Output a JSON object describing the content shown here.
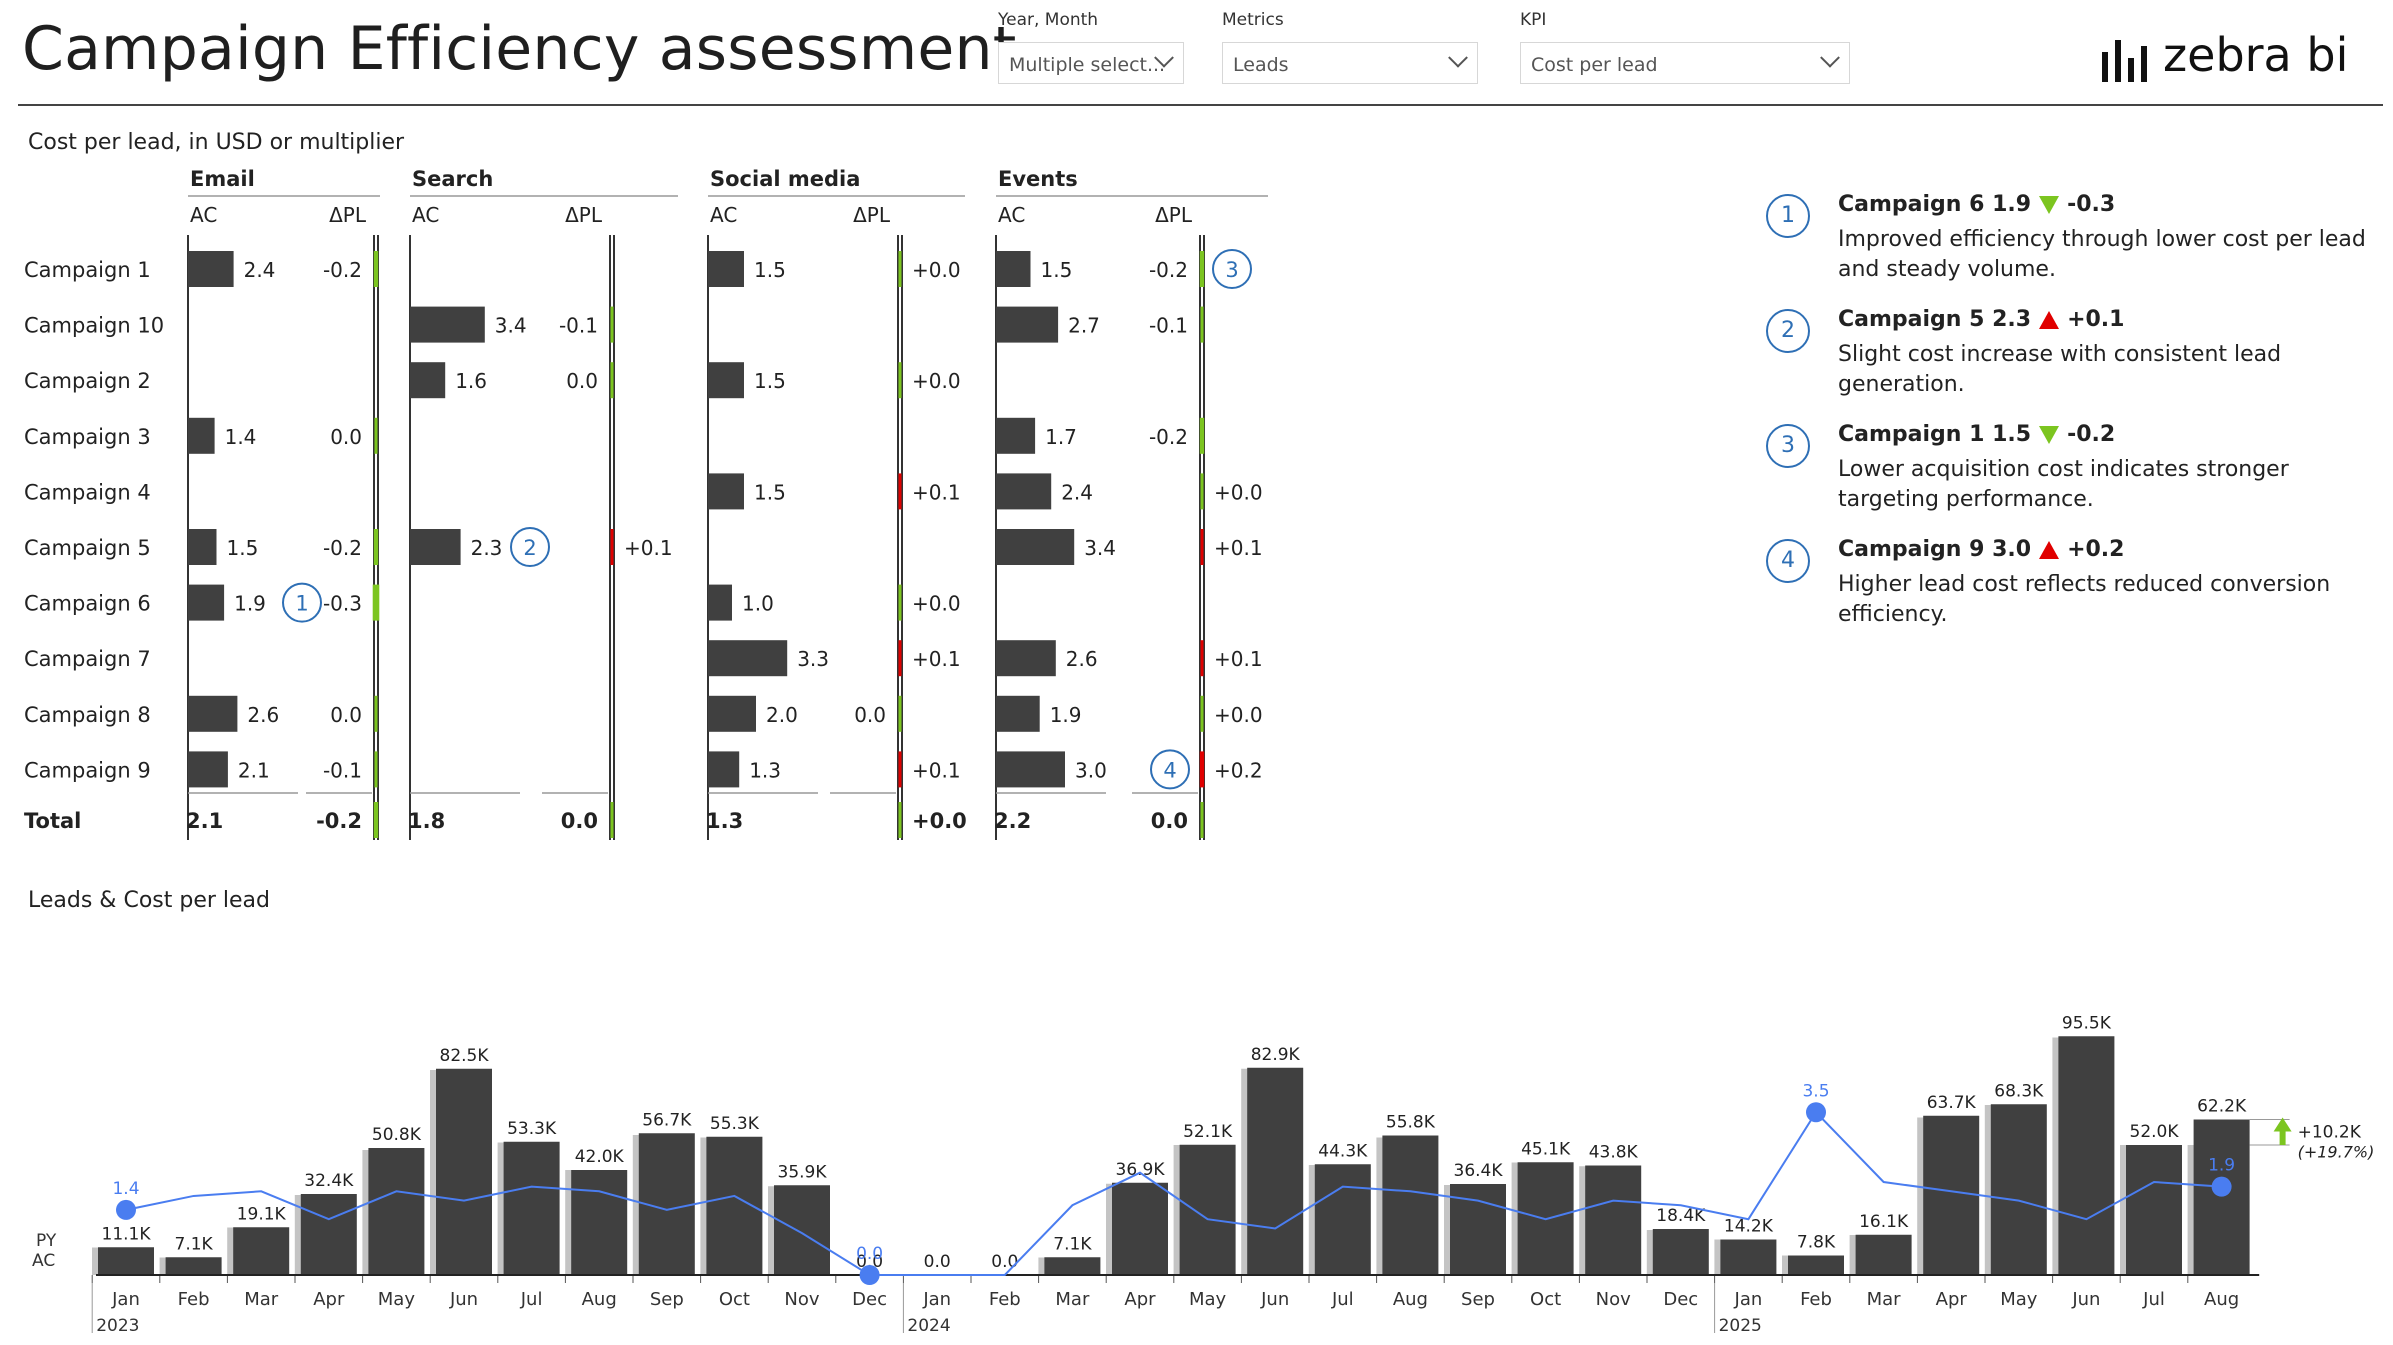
{
  "header": {
    "title": "Campaign Efficiency assessment",
    "filters": [
      {
        "label": "Year, Month",
        "value": "Multiple select..."
      },
      {
        "label": "Metrics",
        "value": "Leads"
      },
      {
        "label": "KPI",
        "value": "Cost per lead"
      }
    ],
    "logo_text": "zebra bi"
  },
  "table": {
    "subtitle": "Cost per lead, in USD or multiplier",
    "total_label": "Total",
    "ac_label": "AC",
    "dpl_label": "ΔPL",
    "rows": [
      "Campaign 1",
      "Campaign 10",
      "Campaign 2",
      "Campaign 3",
      "Campaign 4",
      "Campaign 5",
      "Campaign 6",
      "Campaign 7",
      "Campaign 8",
      "Campaign 9"
    ],
    "groups": [
      {
        "name": "Email",
        "ac": [
          2.4,
          null,
          null,
          1.4,
          null,
          1.5,
          1.9,
          null,
          2.6,
          2.1
        ],
        "ac_labels": [
          "2.4",
          "",
          "",
          "1.4",
          "",
          "1.5",
          "1.9",
          "",
          "2.6",
          "2.1"
        ],
        "dpl": [
          -0.2,
          null,
          null,
          0.0,
          null,
          -0.2,
          -0.3,
          null,
          0.0,
          -0.1
        ],
        "dpl_labels": [
          "-0.2",
          "",
          "",
          "0.0",
          "",
          "-0.2",
          "-0.3",
          "",
          "0.0",
          "-0.1"
        ],
        "total_ac": "2.1",
        "total_dpl": "-0.2",
        "total_dpl_value": -0.2
      },
      {
        "name": "Search",
        "ac": [
          null,
          3.4,
          1.6,
          null,
          null,
          2.3,
          null,
          null,
          null,
          null
        ],
        "ac_labels": [
          "",
          "3.4",
          "1.6",
          "",
          "",
          "2.3",
          "",
          "",
          "",
          ""
        ],
        "dpl": [
          null,
          -0.1,
          0.0,
          null,
          null,
          0.1,
          null,
          null,
          null,
          null
        ],
        "dpl_labels": [
          "",
          "-0.1",
          "0.0",
          "",
          "",
          "+0.1",
          "",
          "",
          "",
          ""
        ],
        "total_ac": "1.8",
        "total_dpl": "0.0",
        "total_dpl_value": 0.0
      },
      {
        "name": "Social media",
        "ac": [
          1.5,
          null,
          1.5,
          null,
          1.5,
          null,
          1.0,
          3.3,
          2.0,
          1.3
        ],
        "ac_labels": [
          "1.5",
          "",
          "1.5",
          "",
          "1.5",
          "",
          "1.0",
          "3.3",
          "2.0",
          "1.3"
        ],
        "dpl": [
          0.0,
          null,
          0.0,
          null,
          0.1,
          null,
          0.0,
          0.1,
          0.0,
          0.1
        ],
        "dpl_labels": [
          "+0.0",
          "",
          "+0.0",
          "",
          "+0.1",
          "",
          "+0.0",
          "+0.1",
          "0.0",
          "+0.1"
        ],
        "total_ac": "1.3",
        "total_dpl": "+0.0",
        "total_dpl_value": 0.0
      },
      {
        "name": "Events",
        "ac": [
          1.5,
          2.7,
          null,
          1.7,
          2.4,
          3.4,
          null,
          2.6,
          1.9,
          3.0
        ],
        "ac_labels": [
          "1.5",
          "2.7",
          "",
          "1.7",
          "2.4",
          "3.4",
          "",
          "2.6",
          "1.9",
          "3.0"
        ],
        "dpl": [
          -0.2,
          -0.1,
          null,
          -0.2,
          0.0,
          0.1,
          null,
          0.1,
          0.0,
          0.2
        ],
        "dpl_labels": [
          "-0.2",
          "-0.1",
          "",
          "-0.2",
          "+0.0",
          "+0.1",
          "",
          "+0.1",
          "+0.0",
          "+0.2"
        ],
        "total_ac": "2.2",
        "total_dpl": "0.0",
        "total_dpl_value": 0.0
      }
    ],
    "markers": [
      {
        "num": "1",
        "group": 0,
        "row": 6
      },
      {
        "num": "2",
        "group": 1,
        "row": 5
      },
      {
        "num": "3",
        "group": 3,
        "row": 0
      },
      {
        "num": "4",
        "group": 3,
        "row": 9
      }
    ],
    "colors": {
      "bar": "#404040",
      "good": "#7cc520",
      "bad": "#e00000",
      "marker": "#2e6fb5"
    }
  },
  "notes": [
    {
      "num": "1",
      "head": "Campaign 6 1.9",
      "dir": "down",
      "delta": "-0.3",
      "text": "Improved efficiency through lower cost per lead and steady volume."
    },
    {
      "num": "2",
      "head": "Campaign 5 2.3",
      "dir": "up",
      "delta": "+0.1",
      "text": "Slight cost increase with consistent lead generation."
    },
    {
      "num": "3",
      "head": "Campaign 1 1.5",
      "dir": "down",
      "delta": "-0.2",
      "text": "Lower acquisition cost indicates stronger targeting performance."
    },
    {
      "num": "4",
      "head": "Campaign 9 3.0",
      "dir": "up",
      "delta": "+0.2",
      "text": "Higher lead cost reflects reduced conversion efficiency."
    }
  ],
  "chart_data": {
    "type": "bar",
    "title": "Leads & Cost per lead",
    "legend": [
      "PY",
      "AC"
    ],
    "categories": [
      "Jan",
      "Feb",
      "Mar",
      "Apr",
      "May",
      "Jun",
      "Jul",
      "Aug",
      "Sep",
      "Oct",
      "Nov",
      "Dec",
      "Jan",
      "Feb",
      "Mar",
      "Apr",
      "May",
      "Jun",
      "Jul",
      "Aug",
      "Sep",
      "Oct",
      "Nov",
      "Dec",
      "Jan",
      "Feb",
      "Mar",
      "Apr",
      "May",
      "Jun",
      "Jul",
      "Aug"
    ],
    "year_labels": [
      {
        "index": 0,
        "label": "2023"
      },
      {
        "index": 12,
        "label": "2024"
      },
      {
        "index": 24,
        "label": "2025"
      }
    ],
    "series": [
      {
        "name": "AC",
        "values": [
          11.1,
          7.1,
          19.1,
          32.4,
          50.8,
          82.5,
          53.3,
          42.0,
          56.7,
          55.3,
          35.9,
          0.0,
          0.0,
          0.0,
          7.1,
          36.9,
          52.1,
          82.9,
          44.3,
          55.8,
          36.4,
          45.1,
          43.8,
          18.4,
          14.2,
          7.8,
          16.1,
          63.7,
          68.3,
          95.5,
          52.0,
          62.2
        ],
        "labels": [
          "11.1K",
          "7.1K",
          "19.1K",
          "32.4K",
          "50.8K",
          "82.5K",
          "53.3K",
          "42.0K",
          "56.7K",
          "55.3K",
          "35.9K",
          "0.0",
          "0.0",
          "0.0",
          "7.1K",
          "36.9K",
          "52.1K",
          "82.9K",
          "44.3K",
          "55.8K",
          "36.4K",
          "45.1K",
          "43.8K",
          "18.4K",
          "14.2K",
          "7.8K",
          "16.1K",
          "63.7K",
          "68.3K",
          "95.5K",
          "52.0K",
          "62.2K"
        ]
      },
      {
        "name": "PY",
        "values": [
          11.0,
          7.0,
          19.0,
          32.0,
          50.0,
          82.0,
          53.0,
          42.0,
          56.0,
          55.0,
          35.5,
          0.0,
          0.0,
          0.0,
          7.0,
          36.5,
          52.0,
          82.5,
          44.0,
          55.0,
          36.0,
          45.0,
          43.5,
          18.0,
          14.2,
          7.8,
          16.0,
          63.0,
          68.0,
          95.0,
          52.0,
          52.0
        ]
      },
      {
        "name": "Cost per lead",
        "values": [
          1.4,
          1.7,
          1.8,
          1.2,
          1.8,
          1.6,
          1.9,
          1.8,
          1.4,
          1.7,
          0.9,
          0.0,
          0.0,
          0.0,
          1.5,
          2.2,
          1.2,
          1.0,
          1.9,
          1.8,
          1.6,
          1.2,
          1.6,
          1.5,
          1.2,
          3.5,
          2.0,
          1.8,
          1.6,
          1.2,
          2.0,
          1.9
        ],
        "labeled_points": [
          {
            "index": 0,
            "label": "1.4"
          },
          {
            "index": 11,
            "label": "0.0"
          },
          {
            "index": 25,
            "label": "3.5"
          },
          {
            "index": 31,
            "label": "1.9"
          }
        ]
      }
    ],
    "variance": {
      "abs": "+10.2K",
      "rel": "(+19.7%)"
    },
    "ylim": [
      0,
      100
    ],
    "line_ylim": [
      0,
      4
    ],
    "colors": {
      "ac": "#404040",
      "py": "#c4c4c4",
      "line": "#4a7df0",
      "good": "#7cc520"
    }
  }
}
